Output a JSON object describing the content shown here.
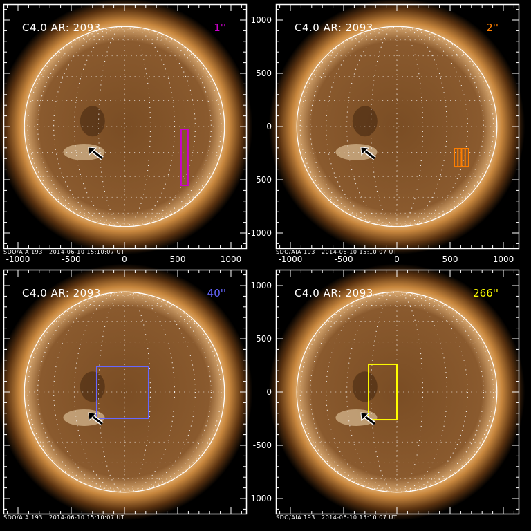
{
  "figure": {
    "units": "arcsec",
    "x_ticks": [
      -1000,
      -500,
      0,
      500,
      1000
    ],
    "y_ticks": [
      -1000,
      -500,
      0,
      500,
      1000
    ],
    "colors": {
      "corona": "#c8873e",
      "disk": "#8a5a2e",
      "limb": "#ffffff",
      "background": "#000000"
    },
    "panels": [
      {
        "title": "C4.0 AR: 2093",
        "size_label": "1''",
        "box_color": "#cc00cc",
        "box": {
          "x0": 532,
          "x1": 597,
          "y0": -552,
          "y1": -26
        },
        "stripes": false,
        "footer": "SDO/AIA 193   2014-06-10 15:10:07 UT",
        "show_x_labels": true,
        "show_y_labels": false,
        "arrow_tip": [
          -338,
          -195
        ]
      },
      {
        "title": "C4.0 AR: 2093",
        "size_label": "2''",
        "box_color": "#ff7f00",
        "box": {
          "x0": 539,
          "x1": 675,
          "y0": -377,
          "y1": -208
        },
        "stripes": true,
        "footer": "SDO/AIA 193   2014-06-10 15:10:07 UT",
        "show_x_labels": true,
        "show_y_labels": true,
        "arrow_tip": [
          -338,
          -195
        ]
      },
      {
        "title": "C4.0 AR: 2093",
        "size_label": "40''",
        "box_color": "#6666ff",
        "box": {
          "x0": -260,
          "x1": 227,
          "y0": -247,
          "y1": 240
        },
        "stripes": false,
        "footer": "SDO/AIA 193   2014-06-10 15:10:07 UT",
        "show_x_labels": false,
        "show_y_labels": false,
        "arrow_tip": [
          -338,
          -195
        ]
      },
      {
        "title": "C4.0 AR: 2093",
        "size_label": "266''",
        "box_color": "#ffff00",
        "box": {
          "x0": -266,
          "x1": 0,
          "y0": -260,
          "y1": 260
        },
        "stripes": false,
        "footer": "SDO/AIA 193   2014-06-10 15:10:07 UT",
        "show_x_labels": false,
        "show_y_labels": true,
        "arrow_tip": [
          -338,
          -195
        ]
      }
    ]
  }
}
